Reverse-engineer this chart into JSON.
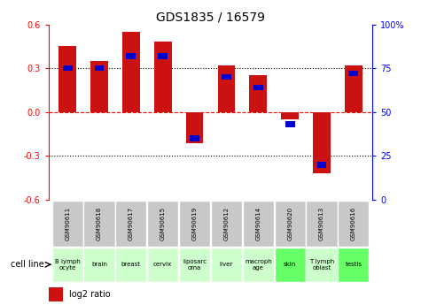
{
  "title": "GDS1835 / 16579",
  "samples": [
    "GSM90611",
    "GSM90618",
    "GSM90617",
    "GSM90615",
    "GSM90619",
    "GSM90612",
    "GSM90614",
    "GSM90620",
    "GSM90613",
    "GSM90616"
  ],
  "cell_lines": [
    "B lymph\nocyte",
    "brain",
    "breast",
    "cervix",
    "liposarc\noma",
    "liver",
    "macroph\nage",
    "skin",
    "T lymph\noblast",
    "testis"
  ],
  "log2_ratio": [
    0.45,
    0.35,
    0.55,
    0.48,
    -0.21,
    0.32,
    0.25,
    -0.05,
    -0.42,
    0.32
  ],
  "percentile_rank": [
    75,
    75,
    82,
    82,
    35,
    70,
    64,
    43,
    20,
    72
  ],
  "cell_line_colors": [
    "#ccffcc",
    "#ccffcc",
    "#ccffcc",
    "#ccffcc",
    "#ccffcc",
    "#ccffcc",
    "#ccffcc",
    "#66ff66",
    "#ccffcc",
    "#66ff66"
  ],
  "gsm_bg_color": "#c8c8c8",
  "bar_color": "#cc1111",
  "pct_color": "#0000cc",
  "ylim": [
    -0.6,
    0.6
  ],
  "yticks_left": [
    -0.6,
    -0.3,
    0.0,
    0.3,
    0.6
  ],
  "yticks_right": [
    0,
    25,
    50,
    75,
    100
  ],
  "title_fontsize": 10,
  "tick_fontsize": 7,
  "bar_width": 0.55
}
